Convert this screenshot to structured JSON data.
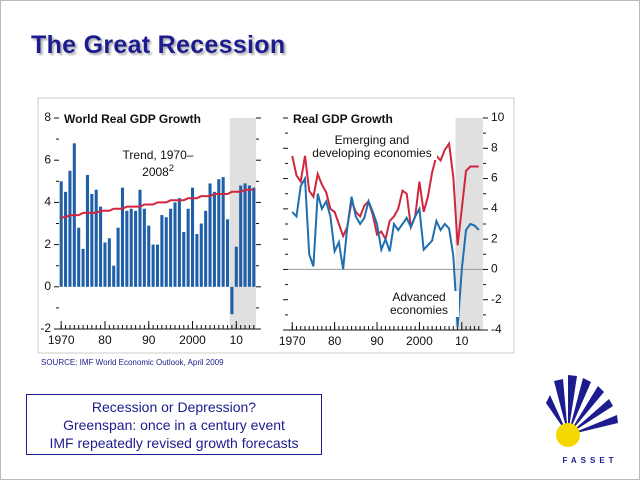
{
  "title": "The Great Recession",
  "chart_data": [
    {
      "type": "bar",
      "title": "World Real GDP Growth",
      "x": [
        1970,
        1971,
        1972,
        1973,
        1974,
        1975,
        1976,
        1977,
        1978,
        1979,
        1980,
        1981,
        1982,
        1983,
        1984,
        1985,
        1986,
        1987,
        1988,
        1989,
        1990,
        1991,
        1992,
        1993,
        1994,
        1995,
        1996,
        1997,
        1998,
        1999,
        2000,
        2001,
        2002,
        2003,
        2004,
        2005,
        2006,
        2007,
        2008,
        2009,
        2010,
        2011,
        2012,
        2013,
        2014
      ],
      "series": [
        {
          "type": "bar",
          "color": "#1f5fa8",
          "values": [
            5.0,
            4.5,
            5.5,
            6.8,
            2.8,
            1.8,
            5.3,
            4.4,
            4.6,
            3.8,
            2.1,
            2.3,
            1.0,
            2.8,
            4.7,
            3.6,
            3.7,
            3.6,
            4.6,
            3.7,
            2.9,
            2.0,
            2.0,
            3.4,
            3.3,
            3.7,
            4.0,
            4.2,
            2.6,
            3.7,
            4.7,
            2.5,
            3.0,
            3.6,
            4.9,
            4.5,
            5.1,
            5.2,
            3.2,
            -1.3,
            1.9,
            4.8,
            4.9,
            4.8,
            4.7
          ]
        },
        {
          "type": "line",
          "name": "Trend, 1970–2008",
          "footnote": "2",
          "color": "#d0273e",
          "values": [
            3.3,
            3.3,
            3.4,
            3.4,
            3.4,
            3.5,
            3.5,
            3.5,
            3.5,
            3.6,
            3.6,
            3.6,
            3.7,
            3.7,
            3.7,
            3.8,
            3.8,
            3.8,
            3.8,
            3.9,
            3.9,
            3.9,
            4.0,
            4.0,
            4.0,
            4.1,
            4.1,
            4.1,
            4.1,
            4.2,
            4.2,
            4.2,
            4.3,
            4.3,
            4.3,
            4.4,
            4.4,
            4.4,
            4.4,
            4.5,
            4.5,
            4.5,
            4.6,
            4.6,
            4.6
          ]
        }
      ],
      "xlim": [
        1969.5,
        2014.5
      ],
      "xticks": [
        1970,
        {
          "value": 1980,
          "label": "80"
        },
        {
          "value": 1990,
          "label": "90"
        },
        2000,
        {
          "value": 2010,
          "label": "10"
        }
      ],
      "ylim": [
        -2,
        8
      ],
      "yticks": [
        -2,
        0,
        2,
        4,
        6,
        8
      ],
      "shade": [
        2008.5,
        2014.5
      ]
    },
    {
      "type": "line",
      "title": "Real GDP Growth",
      "x": [
        1970,
        1971,
        1972,
        1973,
        1974,
        1975,
        1976,
        1977,
        1978,
        1979,
        1980,
        1981,
        1982,
        1983,
        1984,
        1985,
        1986,
        1987,
        1988,
        1989,
        1990,
        1991,
        1992,
        1993,
        1994,
        1995,
        1996,
        1997,
        1998,
        1999,
        2000,
        2001,
        2002,
        2003,
        2004,
        2005,
        2006,
        2007,
        2008,
        2009,
        2010,
        2011,
        2012,
        2013,
        2014
      ],
      "series": [
        {
          "name": "Emerging and developing economies",
          "color": "#d0273e",
          "axis": "y2",
          "values": [
            7.5,
            6.2,
            5.8,
            7.5,
            5.2,
            4.8,
            6.3,
            5.6,
            5.1,
            4.0,
            3.8,
            3.0,
            2.2,
            2.8,
            4.5,
            3.8,
            3.5,
            4.2,
            4.5,
            3.6,
            2.3,
            2.5,
            2.0,
            3.2,
            3.5,
            4.0,
            5.2,
            5.0,
            2.8,
            3.5,
            5.8,
            3.8,
            4.8,
            6.4,
            7.5,
            7.2,
            7.9,
            8.3,
            6.1,
            1.6,
            4.0,
            6.5,
            6.8,
            6.8,
            6.8
          ]
        },
        {
          "name": "Advanced economies",
          "color": "#1f6fb0",
          "axis": "y2",
          "values": [
            3.8,
            3.5,
            5.5,
            6.0,
            1.0,
            0.2,
            5.0,
            4.0,
            4.5,
            3.5,
            1.2,
            1.8,
            0.0,
            2.8,
            4.8,
            3.5,
            3.0,
            3.4,
            4.5,
            3.8,
            3.0,
            1.3,
            2.0,
            1.2,
            3.0,
            2.6,
            3.0,
            3.4,
            2.8,
            3.5,
            4.0,
            1.3,
            1.6,
            1.9,
            3.2,
            2.6,
            3.0,
            2.7,
            0.9,
            -3.8,
            0.0,
            2.6,
            3.0,
            2.9,
            2.6
          ]
        }
      ],
      "xlim": [
        1969,
        2015
      ],
      "xticks": [
        1970,
        {
          "value": 1980,
          "label": "80"
        },
        {
          "value": 1990,
          "label": "90"
        },
        2000,
        {
          "value": 2010,
          "label": "10"
        }
      ],
      "y2lim": [
        -4,
        10
      ],
      "y2ticks": [
        -4,
        -2,
        0,
        2,
        4,
        6,
        8,
        10
      ],
      "shade": [
        2008.5,
        2015
      ]
    }
  ],
  "source": "SOURCE: IMF World Economic Outlook, April 2009",
  "box": [
    "Recession or Depression?",
    "Greenspan: once in a century event",
    "IMF repeatedly revised growth forecasts"
  ],
  "logo": "FASSET"
}
